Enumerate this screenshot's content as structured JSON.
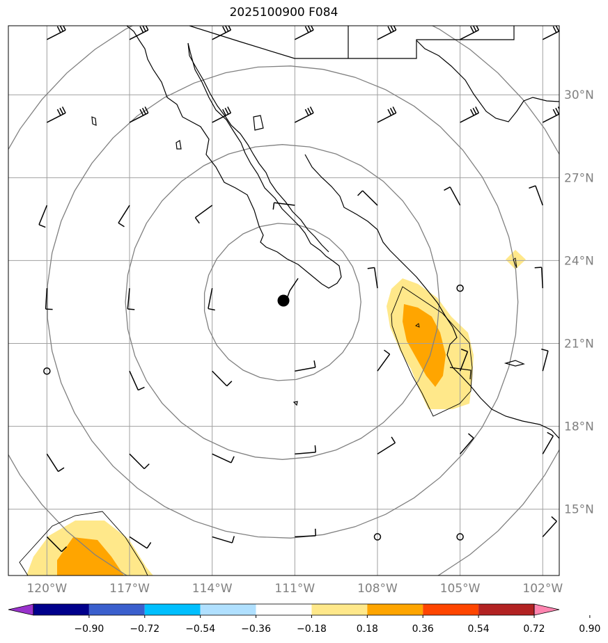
{
  "title": "2025100900 F084",
  "map": {
    "lon_range": [
      -121.4,
      -101.4
    ],
    "lat_range": [
      12.6,
      32.5
    ],
    "lon_ticks": [
      {
        "value": -120,
        "label": "120°W"
      },
      {
        "value": -117,
        "label": "117°W"
      },
      {
        "value": -114,
        "label": "114°W"
      },
      {
        "value": -111,
        "label": "111°W"
      },
      {
        "value": -108,
        "label": "108°W"
      },
      {
        "value": -105,
        "label": "105°W"
      },
      {
        "value": -102,
        "label": "102°W"
      }
    ],
    "lat_ticks": [
      {
        "value": 15,
        "label": "15°N"
      },
      {
        "value": 18,
        "label": "18°N"
      },
      {
        "value": 21,
        "label": "21°N"
      },
      {
        "value": 24,
        "label": "24°N"
      },
      {
        "value": 27,
        "label": "27°N"
      },
      {
        "value": 30,
        "label": "30°N"
      }
    ],
    "storm_center": {
      "lon": -111.45,
      "lat": 22.5
    },
    "range_rings_deg": [
      3,
      6,
      9,
      12
    ],
    "colors": {
      "coast": "#000000",
      "grid": "#a0a0a0",
      "rings": "#808080",
      "barbs": "#000000"
    }
  },
  "colorbar": {
    "ticks": [
      "−0.90",
      "−0.72",
      "−0.54",
      "−0.36",
      "−0.18",
      "0.18",
      "0.36",
      "0.54",
      "0.72",
      "0.90"
    ],
    "colors": [
      "#9932cc",
      "#00008b",
      "#3a5fcd",
      "#00bfff",
      "#b0e0ff",
      "#ffffff",
      "#ffe88a",
      "#ffa500",
      "#ff4500",
      "#b22222",
      "#ff85b0"
    ]
  }
}
